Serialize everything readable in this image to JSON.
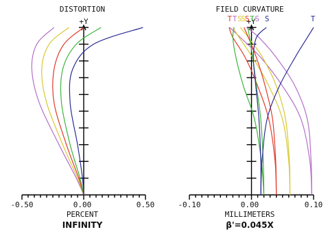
{
  "colors": {
    "violet": "#b46ec8",
    "yellow": "#d8c832",
    "red": "#e03a2a",
    "green": "#3cb43c",
    "blue": "#2c2c96"
  },
  "chart_data": [
    {
      "type": "line",
      "title": "DISTORTION",
      "y_axis_label": "+Y",
      "xlabel": "PERCENT",
      "sublabel": "INFINITY",
      "xlim": [
        -0.5,
        0.5
      ],
      "x_ticks": [
        "-0.50",
        "0.00",
        "0.50"
      ],
      "ylim": [
        0,
        1
      ],
      "y_ticks": 10,
      "series": [
        {
          "color": "violet",
          "x": [
            0,
            -0.06,
            -0.2,
            -0.36,
            -0.42,
            -0.38,
            -0.24
          ],
          "y": [
            0,
            0.1,
            0.3,
            0.55,
            0.75,
            0.9,
            1.0
          ]
        },
        {
          "color": "yellow",
          "x": [
            0,
            -0.05,
            -0.17,
            -0.3,
            -0.34,
            -0.28,
            -0.12
          ],
          "y": [
            0,
            0.1,
            0.3,
            0.55,
            0.75,
            0.9,
            1.0
          ]
        },
        {
          "color": "red",
          "x": [
            0,
            -0.04,
            -0.14,
            -0.24,
            -0.24,
            -0.16,
            0.0
          ],
          "y": [
            0,
            0.1,
            0.3,
            0.55,
            0.75,
            0.9,
            1.0
          ]
        },
        {
          "color": "green",
          "x": [
            0,
            -0.03,
            -0.11,
            -0.18,
            -0.17,
            -0.06,
            0.14
          ],
          "y": [
            0,
            0.1,
            0.3,
            0.55,
            0.75,
            0.9,
            1.0
          ]
        },
        {
          "color": "blue",
          "x": [
            0,
            -0.01,
            -0.05,
            -0.11,
            -0.09,
            0.08,
            0.48
          ],
          "y": [
            0,
            0.1,
            0.3,
            0.55,
            0.75,
            0.9,
            1.0
          ]
        }
      ]
    },
    {
      "type": "line",
      "title": "FIELD CURVATURE",
      "y_axis_label": "+Y",
      "xlabel": "MILLIMETERS",
      "sublabel": "β'=0.045X",
      "xlim": [
        -0.1,
        0.1
      ],
      "x_ticks": [
        "-0.10",
        "0.00",
        "0.10"
      ],
      "ylim": [
        0,
        1
      ],
      "y_ticks": 10,
      "top_labels": [
        {
          "text": "T",
          "color": "red",
          "x": -0.035
        },
        {
          "text": "T",
          "color": "violet",
          "x": -0.027
        },
        {
          "text": "S",
          "color": "yellow",
          "x": -0.019
        },
        {
          "text": "S",
          "color": "yellow",
          "x": -0.013
        },
        {
          "text": "S",
          "color": "red",
          "x": -0.007
        },
        {
          "text": "T",
          "color": "green",
          "x": 0.001
        },
        {
          "text": "S",
          "color": "violet",
          "x": 0.009
        },
        {
          "text": "S",
          "color": "blue",
          "x": 0.025
        },
        {
          "text": "T",
          "color": "blue",
          "x": 0.099
        }
      ],
      "series": [
        {
          "color": "violet",
          "kind": "T",
          "x": [
            0.097,
            0.094,
            0.08,
            0.05,
            0.015,
            -0.018,
            -0.035
          ],
          "y": [
            0,
            0.2,
            0.45,
            0.65,
            0.82,
            0.94,
            1.0
          ]
        },
        {
          "color": "violet",
          "kind": "S",
          "x": [
            0.097,
            0.096,
            0.09,
            0.07,
            0.04,
            0.012,
            -0.008
          ],
          "y": [
            0,
            0.2,
            0.45,
            0.65,
            0.82,
            0.94,
            1.0
          ]
        },
        {
          "color": "yellow",
          "kind": "T",
          "x": [
            0.062,
            0.06,
            0.05,
            0.028,
            0.002,
            -0.02,
            -0.03
          ],
          "y": [
            0,
            0.2,
            0.45,
            0.65,
            0.82,
            0.94,
            1.0
          ]
        },
        {
          "color": "yellow",
          "kind": "S",
          "x": [
            0.062,
            0.061,
            0.055,
            0.04,
            0.018,
            -0.005,
            -0.018
          ],
          "y": [
            0,
            0.2,
            0.45,
            0.65,
            0.82,
            0.94,
            1.0
          ]
        },
        {
          "color": "red",
          "kind": "T",
          "x": [
            0.04,
            0.038,
            0.028,
            0.01,
            -0.01,
            -0.03,
            -0.036
          ],
          "y": [
            0,
            0.2,
            0.45,
            0.65,
            0.82,
            0.94,
            1.0
          ]
        },
        {
          "color": "red",
          "kind": "S",
          "x": [
            0.04,
            0.039,
            0.034,
            0.022,
            0.008,
            -0.005,
            -0.012
          ],
          "y": [
            0,
            0.2,
            0.45,
            0.65,
            0.82,
            0.94,
            1.0
          ]
        },
        {
          "color": "green",
          "kind": "T",
          "x": [
            0.02,
            0.016,
            0.005,
            -0.013,
            -0.025,
            -0.03,
            -0.028
          ],
          "y": [
            0,
            0.2,
            0.45,
            0.65,
            0.82,
            0.94,
            1.0
          ]
        },
        {
          "color": "green",
          "kind": "S",
          "x": [
            0.02,
            0.019,
            0.015,
            0.008,
            0.002,
            -0.003,
            -0.006
          ],
          "y": [
            0,
            0.2,
            0.45,
            0.65,
            0.82,
            0.94,
            1.0
          ]
        },
        {
          "color": "blue",
          "kind": "T",
          "x": [
            0.015,
            0.017,
            0.025,
            0.045,
            0.07,
            0.09,
            0.1
          ],
          "y": [
            0,
            0.2,
            0.45,
            0.65,
            0.82,
            0.94,
            1.0
          ]
        },
        {
          "color": "blue",
          "kind": "S",
          "x": [
            0.015,
            0.015,
            0.012,
            0.007,
            0.003,
            0.008,
            0.024
          ],
          "y": [
            0,
            0.2,
            0.45,
            0.65,
            0.82,
            0.94,
            1.0
          ]
        }
      ]
    }
  ]
}
